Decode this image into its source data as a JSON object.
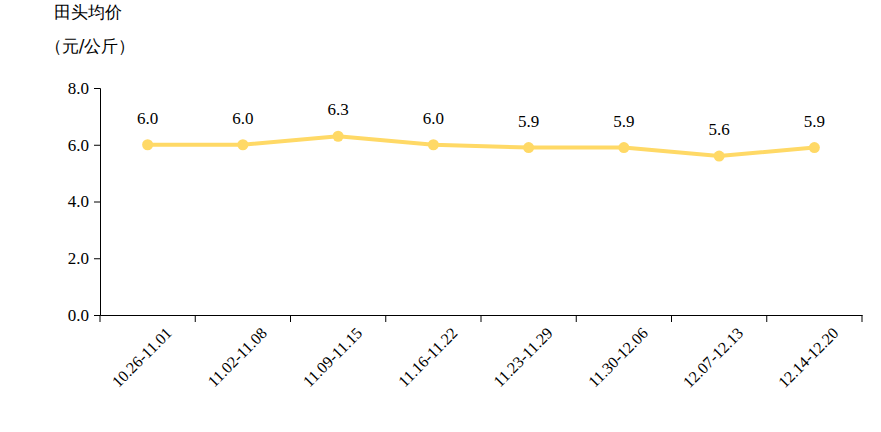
{
  "chart_data": {
    "type": "line",
    "ylabel": [
      "田头均价",
      "（元/公斤）"
    ],
    "categories": [
      "10.26-11.01",
      "11.02-11.08",
      "11.09-11.15",
      "11.16-11.22",
      "11.23-11.29",
      "11.30-12.06",
      "12.07-12.13",
      "12.14-12.20"
    ],
    "series": [
      {
        "color": "#FFD966",
        "marker": "circle",
        "line_style": "solid",
        "values": [
          6.0,
          6.0,
          6.3,
          6.0,
          5.9,
          5.9,
          5.6,
          5.9
        ],
        "value_labels": [
          "6.0",
          "6.0",
          "6.3",
          "6.0",
          "5.9",
          "5.9",
          "5.6",
          "5.9"
        ]
      }
    ],
    "ylim": [
      0,
      8
    ],
    "yticks": [
      {
        "value": 0,
        "label": "0.0"
      },
      {
        "value": 2,
        "label": "2.0"
      },
      {
        "value": 4,
        "label": "4.0"
      },
      {
        "value": 6,
        "label": "6.0"
      },
      {
        "value": 8,
        "label": "8.0"
      }
    ],
    "grid": false,
    "data_labels": true
  }
}
